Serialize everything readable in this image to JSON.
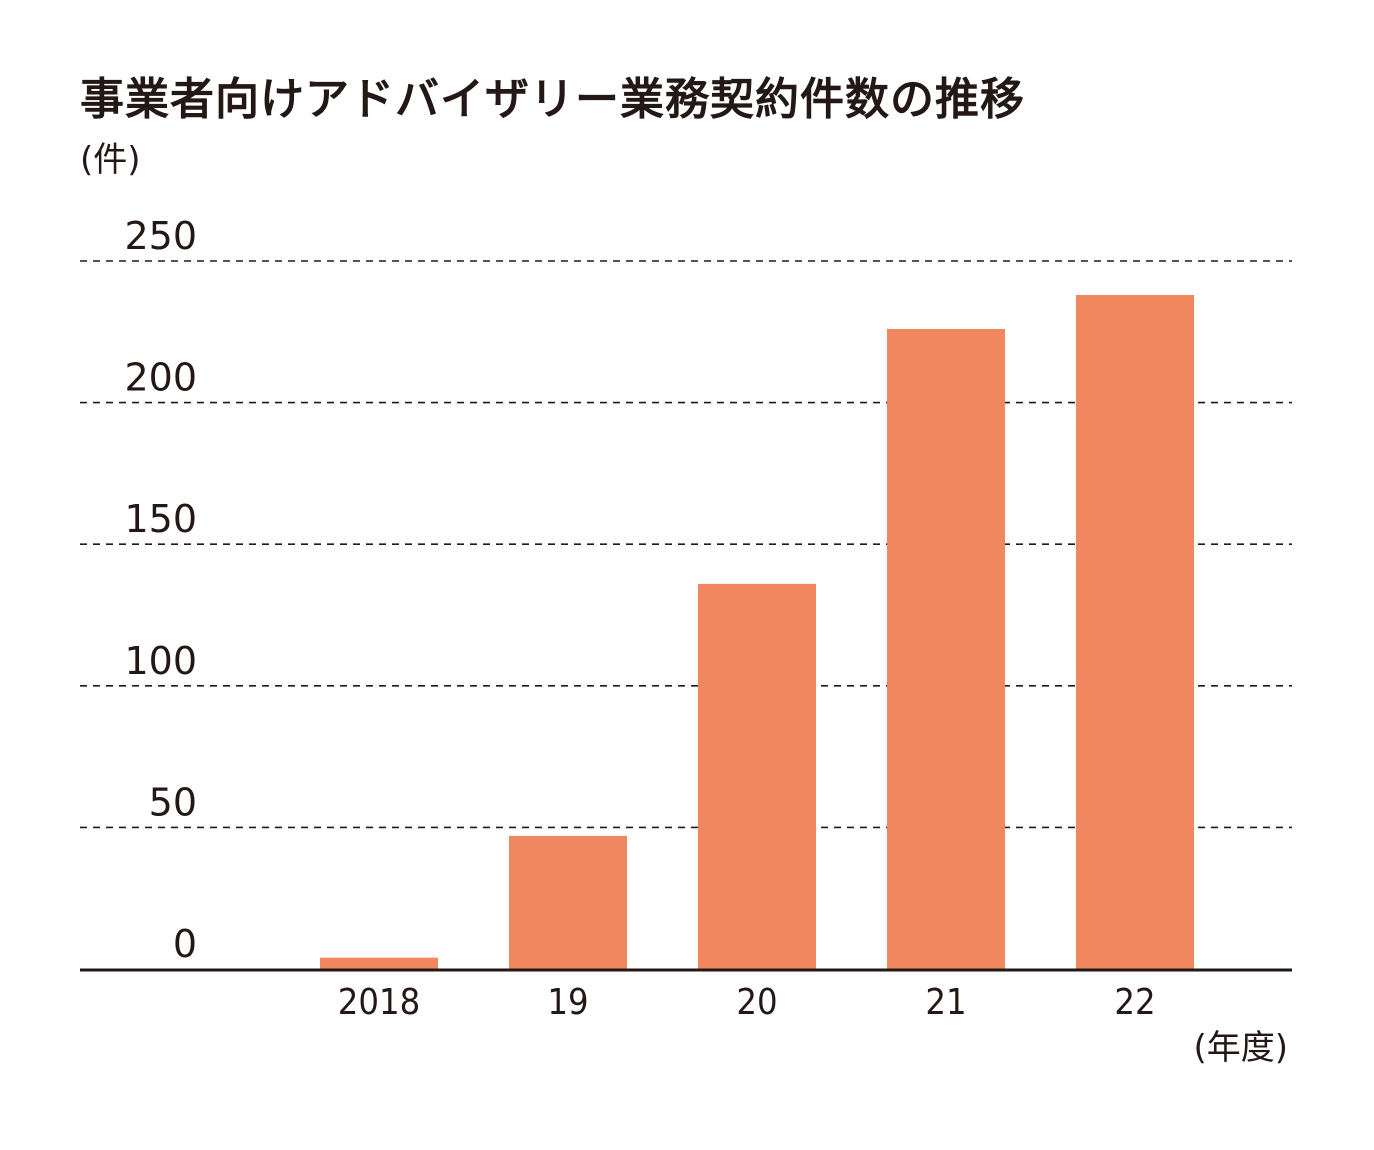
{
  "chart_data": {
    "type": "bar",
    "title": "事業者向けアドバイザリー業務契約件数の推移",
    "ylabel": "(件)",
    "xlabel": "(年度)",
    "categories": [
      "2018",
      "19",
      "20",
      "21",
      "22"
    ],
    "values": [
      4,
      47,
      136,
      226,
      238
    ],
    "ylim": [
      0,
      250
    ],
    "yticks": [
      0,
      50,
      100,
      150,
      200,
      250
    ],
    "grid": true,
    "bar_color": "#f0875f",
    "grid_color": "#231815",
    "axis_color": "#231815"
  }
}
